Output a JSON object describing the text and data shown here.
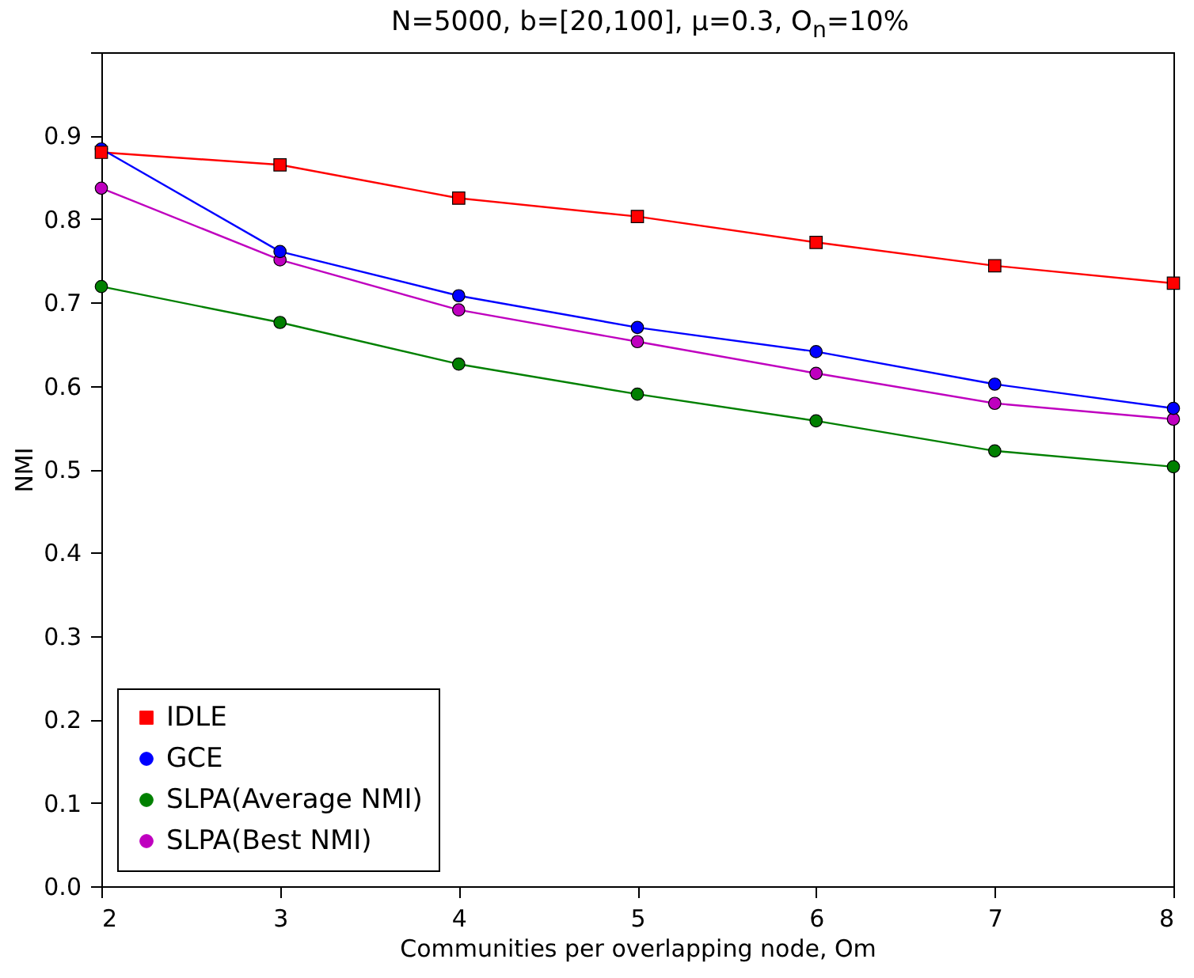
{
  "chart_data": {
    "type": "line",
    "title": "N=5000, b=[20,100], μ=0.3, O$_{n}$=10%",
    "xlabel": "Communities per overlapping node, Om",
    "ylabel": "NMI",
    "x": [
      2,
      3,
      4,
      5,
      6,
      7,
      8
    ],
    "series": [
      {
        "name": "IDLE",
        "color": "#ff0000",
        "marker": "square",
        "values": [
          0.88,
          0.865,
          0.825,
          0.803,
          0.772,
          0.744,
          0.723
        ]
      },
      {
        "name": "GCE",
        "color": "#0000ff",
        "marker": "circle",
        "values": [
          0.884,
          0.761,
          0.708,
          0.67,
          0.641,
          0.602,
          0.573
        ]
      },
      {
        "name": "SLPA(Average NMI)",
        "color": "#008000",
        "marker": "circle",
        "values": [
          0.719,
          0.676,
          0.626,
          0.59,
          0.558,
          0.522,
          0.503
        ]
      },
      {
        "name": "SLPA(Best NMI)",
        "color": "#bf00bf",
        "marker": "circle",
        "values": [
          0.837,
          0.751,
          0.691,
          0.653,
          0.615,
          0.579,
          0.56
        ]
      }
    ],
    "xlim": [
      2,
      8
    ],
    "xticks": [
      2,
      3,
      4,
      5,
      6,
      7,
      8
    ],
    "ylim": [
      0,
      1.0
    ],
    "yticks": [
      {
        "value": 0,
        "label": "0.0"
      },
      0.1,
      0.2,
      0.3,
      0.4,
      0.5,
      0.6,
      0.7,
      0.8,
      0.9,
      {
        "value": 1.0,
        "label": null
      }
    ],
    "grid": false,
    "legend": "bottom left"
  }
}
